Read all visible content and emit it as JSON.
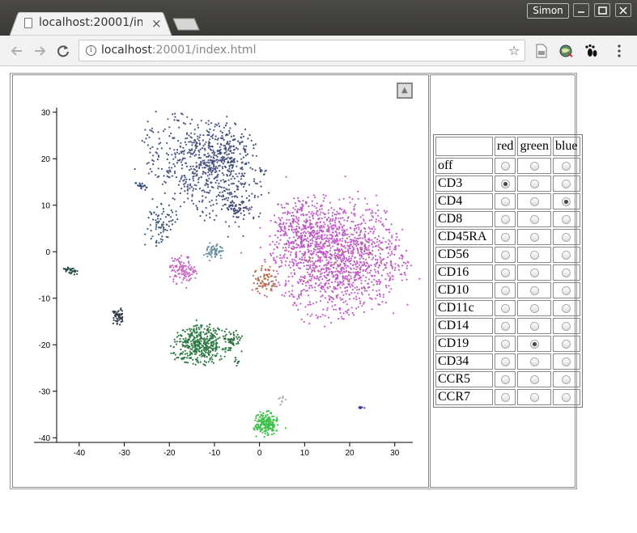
{
  "window": {
    "user": "Simon"
  },
  "tab": {
    "title": "localhost:20001/index.html"
  },
  "address": {
    "host": "localhost",
    "rest": ":20001/index.html"
  },
  "table": {
    "headers": [
      "red",
      "green",
      "blue"
    ],
    "rows": [
      {
        "label": "off",
        "selected": null
      },
      {
        "label": "CD3",
        "selected": "red"
      },
      {
        "label": "CD4",
        "selected": "blue"
      },
      {
        "label": "CD8",
        "selected": null
      },
      {
        "label": "CD45RA",
        "selected": null
      },
      {
        "label": "CD56",
        "selected": null
      },
      {
        "label": "CD16",
        "selected": null
      },
      {
        "label": "CD10",
        "selected": null
      },
      {
        "label": "CD11c",
        "selected": null
      },
      {
        "label": "CD14",
        "selected": null
      },
      {
        "label": "CD19",
        "selected": "green"
      },
      {
        "label": "CD34",
        "selected": null
      },
      {
        "label": "CCR5",
        "selected": null
      },
      {
        "label": "CCR7",
        "selected": null
      }
    ]
  },
  "chart_data": {
    "type": "scatter",
    "xlim": [
      -45,
      34
    ],
    "ylim": [
      -41,
      31
    ],
    "xticks": [
      -40,
      -30,
      -20,
      -10,
      0,
      10,
      20,
      30
    ],
    "yticks": [
      30,
      20,
      10,
      0,
      -10,
      -20,
      -30,
      -40
    ],
    "clusters": [
      {
        "cx": -12,
        "cy": 18,
        "rx": 14,
        "ry": 9,
        "rot": -35,
        "n": 650,
        "color": "#4a5585"
      },
      {
        "cx": -7,
        "cy": 22,
        "rx": 6,
        "ry": 6,
        "rot": 0,
        "n": 120,
        "color": "#3d4a75"
      },
      {
        "cx": -22,
        "cy": 6,
        "rx": 3,
        "ry": 5,
        "rot": -30,
        "n": 80,
        "color": "#3e5a78"
      },
      {
        "cx": -5,
        "cy": 9,
        "rx": 3,
        "ry": 2,
        "rot": 0,
        "n": 50,
        "color": "#3f4a72"
      },
      {
        "cx": 17,
        "cy": -1,
        "rx": 14,
        "ry": 12,
        "rot": 0,
        "n": 1400,
        "color": "#c25cc9"
      },
      {
        "cx": 9,
        "cy": 5,
        "rx": 5,
        "ry": 6,
        "rot": 0,
        "n": 200,
        "color": "#b955c4"
      },
      {
        "cx": 1,
        "cy": -6,
        "rx": 2.5,
        "ry": 3,
        "rot": 0,
        "n": 70,
        "color": "#b26a45"
      },
      {
        "cx": 17,
        "cy": -2,
        "rx": 10,
        "ry": 8,
        "rot": 0,
        "n": 40,
        "color": "#a86d4e"
      },
      {
        "cx": -17,
        "cy": -4,
        "rx": 3,
        "ry": 3,
        "rot": 0,
        "n": 110,
        "color": "#c465c4"
      },
      {
        "cx": -10,
        "cy": 0,
        "rx": 2,
        "ry": 2,
        "rot": 0,
        "n": 60,
        "color": "#6b8ea0"
      },
      {
        "cx": -13,
        "cy": -20,
        "rx": 6,
        "ry": 4,
        "rot": 0,
        "n": 420,
        "color": "#2f7a45"
      },
      {
        "cx": -6,
        "cy": -19,
        "rx": 2,
        "ry": 2,
        "rot": 0,
        "n": 50,
        "color": "#2e7040"
      },
      {
        "cx": 1.5,
        "cy": -37,
        "rx": 2.5,
        "ry": 2.5,
        "rot": 0,
        "n": 200,
        "color": "#3fc04a"
      },
      {
        "cx": -31.5,
        "cy": -14,
        "rx": 1.2,
        "ry": 2,
        "rot": 0,
        "n": 55,
        "color": "#2f3a48"
      },
      {
        "cx": -42,
        "cy": -4,
        "rx": 1.8,
        "ry": 0.6,
        "rot": -20,
        "n": 30,
        "color": "#234a45"
      },
      {
        "cx": -26,
        "cy": 14,
        "rx": 1.5,
        "ry": 0.6,
        "rot": -25,
        "n": 18,
        "color": "#2f4a7a"
      },
      {
        "cx": 22.5,
        "cy": -33.5,
        "rx": 0.8,
        "ry": 0.3,
        "rot": 0,
        "n": 10,
        "color": "#3a3f9a"
      },
      {
        "cx": 5,
        "cy": -32,
        "rx": 0.8,
        "ry": 1,
        "rot": 0,
        "n": 10,
        "color": "#b3aeaa"
      },
      {
        "cx": -5,
        "cy": -24,
        "rx": 0.5,
        "ry": 0.8,
        "rot": 0,
        "n": 8,
        "color": "#2e7040"
      }
    ]
  }
}
